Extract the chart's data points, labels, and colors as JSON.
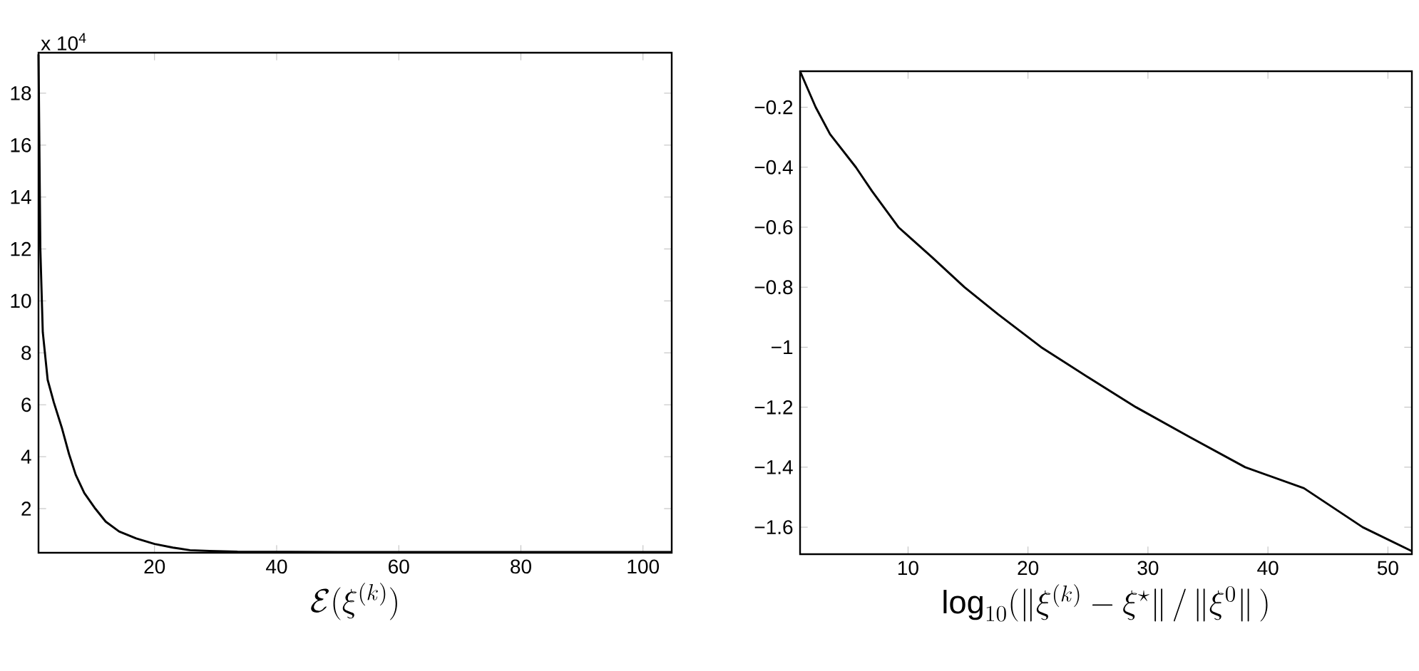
{
  "chart_data": [
    {
      "type": "line",
      "xlabel": "\\mathcal{E}(\\xi^{(k)})",
      "annotations": [
        "x 10$^{4}$"
      ],
      "xlim": [
        1,
        104.7
      ],
      "ylim": [
        0.3,
        19.56
      ],
      "xticks": [
        20,
        40,
        60,
        80,
        100
      ],
      "yticks": [
        2,
        4,
        6,
        8,
        10,
        12,
        14,
        16,
        18
      ],
      "series": [
        {
          "color": "#000000",
          "x": [
            1,
            1.3,
            1.7,
            2.5,
            3.5,
            4.8,
            6,
            7.1,
            8.5,
            10.3,
            12,
            14.2,
            17,
            20,
            23,
            25.8,
            29,
            33.6,
            50,
            70,
            90,
            104.7
          ],
          "values": [
            19.5,
            12,
            8.8,
            6.96,
            6.1,
            5.13,
            4.1,
            3.3,
            2.6,
            2,
            1.5,
            1.12,
            0.85,
            0.64,
            0.5,
            0.4,
            0.37,
            0.34,
            0.33,
            0.33,
            0.33,
            0.33
          ]
        }
      ]
    },
    {
      "type": "line",
      "xlabel": "\\log_{10}(\\bigl\\|\\xi^{(k)}-\\xi^{\\star}\\bigr\\|\\,/\\,\\bigl\\|\\xi^{0}\\bigr\\|\\,)",
      "xlim": [
        1,
        52
      ],
      "ylim": [
        -1.69,
        -0.08
      ],
      "xticks": [
        10,
        20,
        30,
        40,
        50
      ],
      "yticks": [
        {
          "value": -1.6,
          "label": "−1.6"
        },
        {
          "value": -1.4,
          "label": "−1.4"
        },
        {
          "value": -1.2,
          "label": "−1.2"
        },
        {
          "value": -1,
          "label": "−1"
        },
        {
          "value": -0.8,
          "label": "−0.8"
        },
        {
          "value": -0.6,
          "label": "−0.6"
        },
        {
          "value": -0.4,
          "label": "−0.4"
        },
        {
          "value": -0.2,
          "label": "−0.2"
        }
      ],
      "series": [
        {
          "color": "#000000",
          "x": [
            1,
            2.3,
            3.5,
            5.65,
            7,
            9.2,
            12,
            14.7,
            17.5,
            21.1,
            25,
            29,
            33.5,
            38.1,
            43,
            47.9,
            52
          ],
          "values": [
            -0.08,
            -0.2,
            -0.29,
            -0.4,
            -0.48,
            -0.6,
            -0.7,
            -0.8,
            -0.89,
            -1,
            -1.1,
            -1.2,
            -1.3,
            -1.4,
            -1.47,
            -1.6,
            -1.68
          ]
        }
      ]
    }
  ]
}
